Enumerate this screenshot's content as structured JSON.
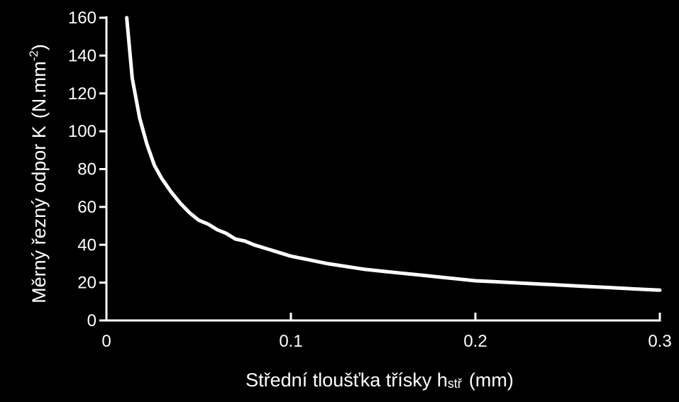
{
  "chart_data": {
    "type": "line",
    "xlabel": "Střední tloušťka třísky h",
    "xlabel_sub": "stř",
    "xlabel_unit": "(mm)",
    "ylabel": "Měrný řezný odpor K",
    "ylabel_unit_pre": "(N.mm",
    "ylabel_unit_sup": "-2",
    "ylabel_unit_post": ")",
    "xlim": [
      0,
      0.3
    ],
    "ylim": [
      0,
      160
    ],
    "x_ticks": [
      0,
      0.1,
      0.2,
      0.3
    ],
    "x_tick_labels": [
      "0",
      "0.1",
      "0.2",
      "0.3"
    ],
    "y_ticks": [
      0,
      20,
      40,
      60,
      80,
      100,
      120,
      140,
      160
    ],
    "y_tick_labels": [
      "0",
      "20",
      "40",
      "60",
      "80",
      "100",
      "120",
      "140",
      "160"
    ],
    "grid": false,
    "colors": {
      "background": "#000000",
      "line": "#ffffff",
      "axis": "#ffffff"
    },
    "series": [
      {
        "x": [
          0.011,
          0.014,
          0.018,
          0.022,
          0.026,
          0.03,
          0.035,
          0.04,
          0.045,
          0.05,
          0.055,
          0.06,
          0.065,
          0.07,
          0.075,
          0.08,
          0.09,
          0.1,
          0.11,
          0.12,
          0.13,
          0.14,
          0.15,
          0.16,
          0.17,
          0.18,
          0.19,
          0.2,
          0.21,
          0.22,
          0.23,
          0.24,
          0.25,
          0.26,
          0.27,
          0.28,
          0.29,
          0.3
        ],
        "y": [
          160,
          128,
          107,
          93,
          82,
          75,
          68,
          62,
          57,
          53,
          51,
          48,
          46,
          43,
          42,
          40,
          37,
          34,
          32,
          30,
          28.5,
          27,
          26,
          25,
          24,
          23,
          22,
          21,
          20.5,
          20,
          19.5,
          19,
          18.5,
          18,
          17.5,
          17,
          16.5,
          16
        ]
      }
    ]
  }
}
